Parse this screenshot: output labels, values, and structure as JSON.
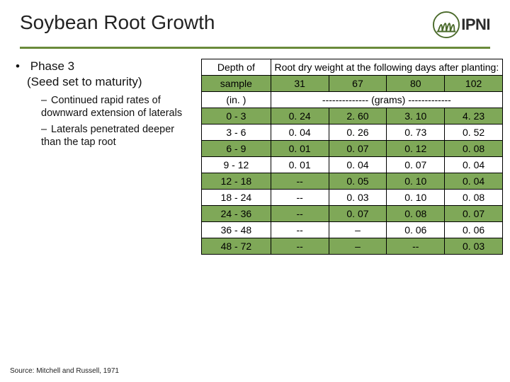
{
  "title": "Soybean Root Growth",
  "logo_text": "IPNI",
  "bullet": {
    "main_line1": "Phase 3",
    "main_line2": "(Seed set to maturity)",
    "subs": [
      "Continued rapid rates of downward extension of laterals",
      "Laterals penetrated deeper than the tap root"
    ]
  },
  "table": {
    "header_left_line1": "Depth of",
    "header_left_line2": "sample",
    "header_right": "Root dry weight at the following days after planting:",
    "days": [
      "31",
      "67",
      "80",
      "102"
    ],
    "unit_left": "(in. )",
    "unit_right": "-------------- (grams) -------------",
    "rows": [
      {
        "depth": "0  -  3",
        "vals": [
          "0. 24",
          "2. 60",
          "3. 10",
          "4. 23"
        ]
      },
      {
        "depth": "3  -  6",
        "vals": [
          "0. 04",
          "0. 26",
          "0. 73",
          "0. 52"
        ]
      },
      {
        "depth": "6  -  9",
        "vals": [
          "0. 01",
          "0. 07",
          "0. 12",
          "0. 08"
        ]
      },
      {
        "depth": "9  -  12",
        "vals": [
          "0. 01",
          "0. 04",
          "0. 07",
          "0. 04"
        ]
      },
      {
        "depth": "12  -  18",
        "vals": [
          "--",
          "0. 05",
          "0. 10",
          "0. 04"
        ]
      },
      {
        "depth": "18  -  24",
        "vals": [
          "--",
          "0. 03",
          "0. 10",
          "0. 08"
        ]
      },
      {
        "depth": "24  -  36",
        "vals": [
          "--",
          "0. 07",
          "0. 08",
          "0. 07"
        ]
      },
      {
        "depth": "36  -  48",
        "vals": [
          "--",
          "–",
          "0. 06",
          "0. 06"
        ]
      },
      {
        "depth": "48  -  72",
        "vals": [
          "--",
          "–",
          "--",
          "0. 03"
        ]
      }
    ],
    "band_rows": [
      0,
      2,
      4,
      6,
      8
    ],
    "header_row2_band": true,
    "unit_row_band": true
  },
  "source": "Source: Mitchell and Russell, 1971",
  "colors": {
    "band": "#7fa858",
    "divider": "#6a8a3a",
    "border": "#000000"
  }
}
